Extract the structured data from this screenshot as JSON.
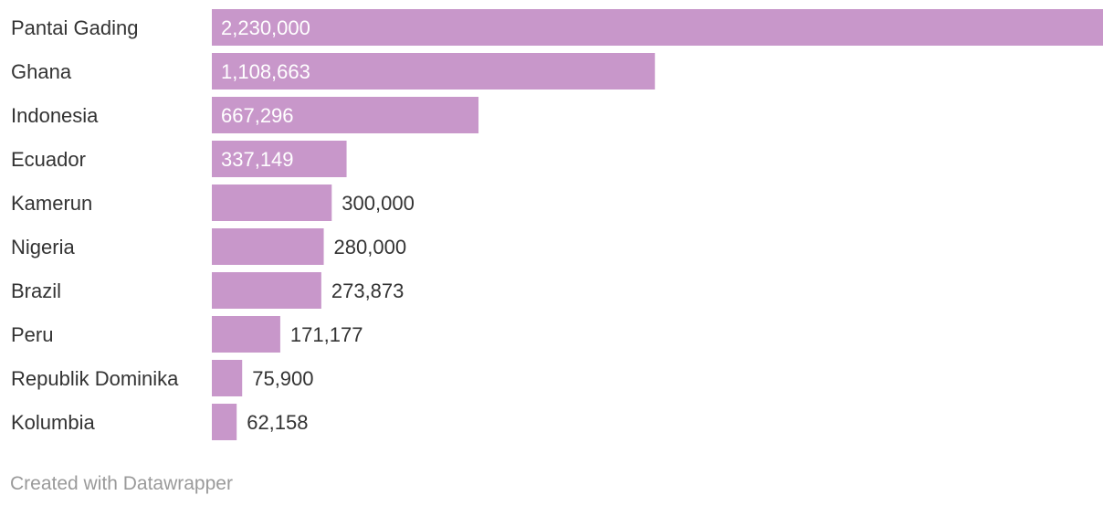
{
  "chart_data": {
    "type": "bar",
    "orientation": "horizontal",
    "categories": [
      "Pantai Gading",
      "Ghana",
      "Indonesia",
      "Ecuador",
      "Kamerun",
      "Nigeria",
      "Brazil",
      "Peru",
      "Republik Dominika",
      "Kolumbia"
    ],
    "values": [
      2230000,
      1108663,
      667296,
      337149,
      300000,
      280000,
      273873,
      171177,
      75900,
      62158
    ],
    "value_labels": [
      "2,230,000",
      "1,108,663",
      "667,296",
      "337,149",
      "300,000",
      "280,000",
      "273,873",
      "171,177",
      "75,900",
      "62,158"
    ],
    "xlim": [
      0,
      2230000
    ],
    "grid": false,
    "colors": {
      "bar": "#c897ca",
      "label_inside": "#ffffff",
      "label_outside": "#333333",
      "category": "#333333"
    }
  },
  "footer": {
    "credit": "Created with Datawrapper"
  }
}
